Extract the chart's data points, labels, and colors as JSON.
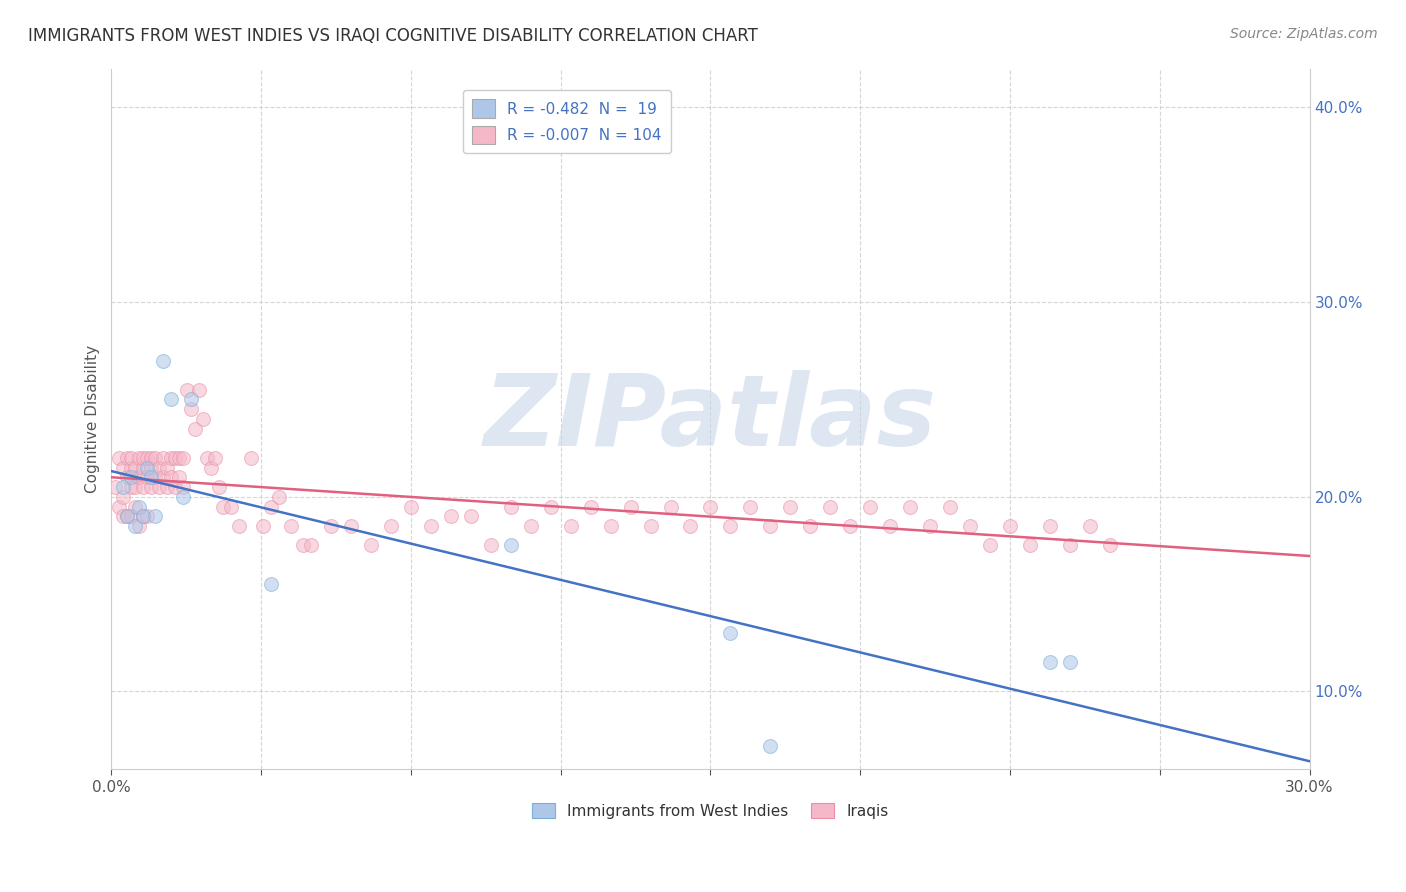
{
  "title": "IMMIGRANTS FROM WEST INDIES VS IRAQI COGNITIVE DISABILITY CORRELATION CHART",
  "source": "Source: ZipAtlas.com",
  "ylabel": "Cognitive Disability",
  "xlim": [
    0.0,
    0.3
  ],
  "ylim": [
    0.06,
    0.42
  ],
  "xticks": [
    0.0,
    0.0375,
    0.075,
    0.1125,
    0.15,
    0.1875,
    0.225,
    0.2625,
    0.3
  ],
  "xtick_labels_show": [
    "0.0%",
    "",
    "",
    "",
    "",
    "",
    "",
    "",
    "30.0%"
  ],
  "yticks": [
    0.1,
    0.2,
    0.3,
    0.4
  ],
  "ytick_labels": [
    "10.0%",
    "20.0%",
    "30.0%",
    "40.0%"
  ],
  "legend_entries": [
    {
      "label": "R = -0.482  N =  19",
      "color": "#aec6e8"
    },
    {
      "label": "R = -0.007  N = 104",
      "color": "#f4b8c8"
    }
  ],
  "legend_labels_bottom": [
    "Immigrants from West Indies",
    "Iraqis"
  ],
  "legend_bottom_colors": [
    "#aec6e8",
    "#f4b8c8"
  ],
  "watermark": "ZIPatlas",
  "watermark_color": "#c8d8e8",
  "background_color": "#ffffff",
  "grid_color": "#cccccc",
  "blue_dot_color": "#aec6e8",
  "blue_dot_edge": "#7ab0d8",
  "pink_dot_color": "#f4b8c8",
  "pink_dot_edge": "#e890a8",
  "blue_line_color": "#4472c4",
  "pink_line_color": "#e06080",
  "west_indies_x": [
    0.003,
    0.004,
    0.005,
    0.006,
    0.007,
    0.008,
    0.009,
    0.01,
    0.011,
    0.013,
    0.015,
    0.018,
    0.02,
    0.04,
    0.1,
    0.155,
    0.165,
    0.235,
    0.24
  ],
  "west_indies_y": [
    0.205,
    0.19,
    0.21,
    0.185,
    0.195,
    0.19,
    0.215,
    0.21,
    0.19,
    0.27,
    0.25,
    0.2,
    0.25,
    0.155,
    0.175,
    0.13,
    0.072,
    0.115,
    0.115
  ],
  "iraqis_x": [
    0.001,
    0.002,
    0.002,
    0.003,
    0.003,
    0.003,
    0.004,
    0.004,
    0.004,
    0.005,
    0.005,
    0.005,
    0.005,
    0.006,
    0.006,
    0.006,
    0.007,
    0.007,
    0.007,
    0.008,
    0.008,
    0.008,
    0.008,
    0.009,
    0.009,
    0.009,
    0.01,
    0.01,
    0.01,
    0.011,
    0.011,
    0.012,
    0.012,
    0.013,
    0.013,
    0.014,
    0.014,
    0.015,
    0.015,
    0.016,
    0.016,
    0.017,
    0.017,
    0.018,
    0.018,
    0.019,
    0.02,
    0.021,
    0.022,
    0.023,
    0.024,
    0.025,
    0.026,
    0.027,
    0.028,
    0.03,
    0.032,
    0.035,
    0.038,
    0.04,
    0.042,
    0.045,
    0.048,
    0.05,
    0.055,
    0.06,
    0.065,
    0.07,
    0.075,
    0.08,
    0.085,
    0.09,
    0.095,
    0.1,
    0.105,
    0.11,
    0.115,
    0.12,
    0.125,
    0.13,
    0.135,
    0.14,
    0.145,
    0.15,
    0.155,
    0.16,
    0.165,
    0.17,
    0.175,
    0.18,
    0.185,
    0.19,
    0.195,
    0.2,
    0.205,
    0.21,
    0.215,
    0.22,
    0.225,
    0.23,
    0.235,
    0.24,
    0.245,
    0.25
  ],
  "iraqis_y": [
    0.205,
    0.195,
    0.22,
    0.215,
    0.2,
    0.19,
    0.21,
    0.22,
    0.19,
    0.215,
    0.205,
    0.22,
    0.19,
    0.215,
    0.205,
    0.195,
    0.21,
    0.22,
    0.185,
    0.215,
    0.205,
    0.22,
    0.19,
    0.22,
    0.21,
    0.19,
    0.215,
    0.205,
    0.22,
    0.22,
    0.21,
    0.215,
    0.205,
    0.22,
    0.21,
    0.215,
    0.205,
    0.22,
    0.21,
    0.22,
    0.205,
    0.22,
    0.21,
    0.22,
    0.205,
    0.255,
    0.245,
    0.235,
    0.255,
    0.24,
    0.22,
    0.215,
    0.22,
    0.205,
    0.195,
    0.195,
    0.185,
    0.22,
    0.185,
    0.195,
    0.2,
    0.185,
    0.175,
    0.175,
    0.185,
    0.185,
    0.175,
    0.185,
    0.195,
    0.185,
    0.19,
    0.19,
    0.175,
    0.195,
    0.185,
    0.195,
    0.185,
    0.195,
    0.185,
    0.195,
    0.185,
    0.195,
    0.185,
    0.195,
    0.185,
    0.195,
    0.185,
    0.195,
    0.185,
    0.195,
    0.185,
    0.195,
    0.185,
    0.195,
    0.185,
    0.195,
    0.185,
    0.175,
    0.185,
    0.175,
    0.185,
    0.175,
    0.185,
    0.175
  ],
  "title_fontsize": 12,
  "source_fontsize": 10,
  "axis_label_fontsize": 11,
  "tick_fontsize": 11,
  "legend_fontsize": 11,
  "dot_size": 100,
  "dot_alpha": 0.55,
  "line_width": 1.8
}
